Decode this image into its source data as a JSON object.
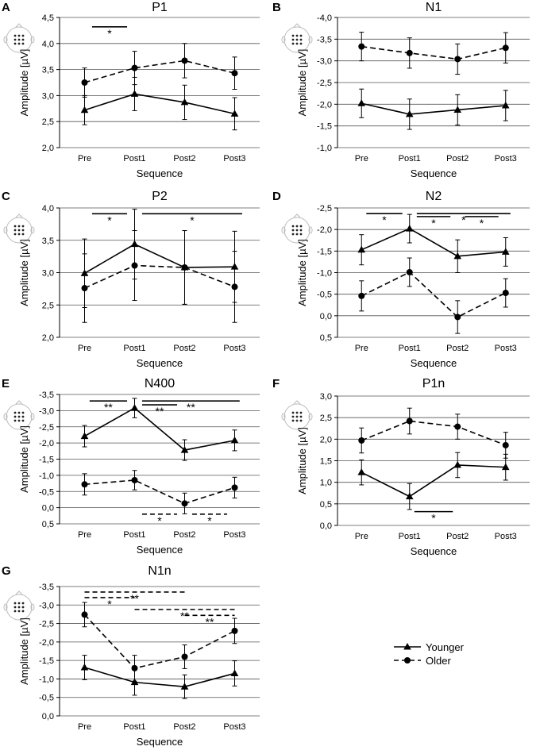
{
  "figure": {
    "legend": {
      "younger": "Younger",
      "older": "Older",
      "younger_marker": "triangle",
      "older_marker": "circle",
      "younger_line": "solid",
      "older_line": "dashed"
    },
    "colors": {
      "line": "#000000",
      "grid": "#555555",
      "head": "#bbbbbb"
    }
  },
  "chart_data": [
    {
      "id": "A",
      "type": "line",
      "title": "P1",
      "xlabel": "Sequence",
      "ylabel": "Amplitude [µV]",
      "categories": [
        "Pre",
        "Post1",
        "Post2",
        "Post3"
      ],
      "ylim": [
        2.0,
        4.5
      ],
      "inverted": false,
      "yticks": [
        2.0,
        2.5,
        3.0,
        3.5,
        4.0,
        4.5
      ],
      "ytick_labels": [
        "2,0",
        "2,5",
        "3,0",
        "3,5",
        "4,0",
        "4,5"
      ],
      "series": [
        {
          "name": "Younger",
          "values": [
            2.72,
            3.03,
            2.87,
            2.65
          ],
          "errors": [
            0.28,
            0.32,
            0.33,
            0.31
          ]
        },
        {
          "name": "Older",
          "values": [
            3.25,
            3.53,
            3.67,
            3.43
          ],
          "errors": [
            0.28,
            0.32,
            0.33,
            0.31
          ]
        }
      ],
      "significance": [
        {
          "from": 0.15,
          "to": 0.85,
          "y": 4.32,
          "dashed": false,
          "label": "*"
        }
      ]
    },
    {
      "id": "B",
      "type": "line",
      "title": "N1",
      "xlabel": "Sequence",
      "ylabel": "Amplitude [µV]",
      "categories": [
        "Pre",
        "Post1",
        "Post2",
        "Post3"
      ],
      "ylim": [
        -4.0,
        -1.0
      ],
      "inverted": true,
      "yticks": [
        -4.0,
        -3.5,
        -3.0,
        -2.5,
        -2.0,
        -1.5,
        -1.0
      ],
      "ytick_labels": [
        "-4,0",
        "-3,5",
        "-3,0",
        "-2,5",
        "-2,0",
        "-1,5",
        "-1,0"
      ],
      "series": [
        {
          "name": "Younger",
          "values": [
            -2.02,
            -1.77,
            -1.87,
            -1.97
          ],
          "errors": [
            0.33,
            0.35,
            0.35,
            0.35
          ]
        },
        {
          "name": "Older",
          "values": [
            -3.33,
            -3.18,
            -3.04,
            -3.3
          ],
          "errors": [
            0.33,
            0.35,
            0.35,
            0.35
          ]
        }
      ],
      "significance": []
    },
    {
      "id": "C",
      "type": "line",
      "title": "P2",
      "xlabel": "Sequence",
      "ylabel": "Amplitude [µV]",
      "categories": [
        "Pre",
        "Post1",
        "Post2",
        "Post3"
      ],
      "ylim": [
        2.0,
        4.0
      ],
      "inverted": false,
      "yticks": [
        2.0,
        2.5,
        3.0,
        3.5,
        4.0
      ],
      "ytick_labels": [
        "2,0",
        "2,5",
        "3,0",
        "3,5",
        "4,0"
      ],
      "series": [
        {
          "name": "Younger",
          "values": [
            2.99,
            3.44,
            3.08,
            3.09
          ],
          "errors": [
            0.53,
            0.54,
            0.57,
            0.55
          ]
        },
        {
          "name": "Older",
          "values": [
            2.76,
            3.11,
            3.08,
            2.78
          ],
          "errors": [
            0.53,
            0.54,
            0.57,
            0.55
          ]
        }
      ],
      "significance": [
        {
          "from": 0.15,
          "to": 0.85,
          "y": 3.91,
          "dashed": false,
          "label": "*"
        },
        {
          "from": 1.15,
          "to": 3.15,
          "y": 3.91,
          "dashed": false,
          "label": "*"
        }
      ]
    },
    {
      "id": "D",
      "type": "line",
      "title": "N2",
      "xlabel": "Sequence",
      "ylabel": "Amplitude [µV]",
      "categories": [
        "Pre",
        "Post1",
        "Post2",
        "Post3"
      ],
      "ylim": [
        -2.5,
        0.5
      ],
      "inverted": true,
      "yticks": [
        -2.5,
        -2.0,
        -1.5,
        -1.0,
        -0.5,
        0.0,
        0.5
      ],
      "ytick_labels": [
        "-2,5",
        "-2,0",
        "-1,5",
        "-1,0",
        "-0,5",
        "0,0",
        "0,5"
      ],
      "series": [
        {
          "name": "Younger",
          "values": [
            -1.53,
            -2.02,
            -1.38,
            -1.48
          ],
          "errors": [
            0.35,
            0.33,
            0.38,
            0.33
          ]
        },
        {
          "name": "Older",
          "values": [
            -0.46,
            -1.01,
            0.03,
            -0.53
          ],
          "errors": [
            0.35,
            0.33,
            0.38,
            0.33
          ]
        }
      ],
      "significance": [
        {
          "from": 0.1,
          "to": 0.85,
          "y": -2.37,
          "dashed": false,
          "label": "*"
        },
        {
          "from": 1.15,
          "to": 3.1,
          "y": -2.37,
          "dashed": false,
          "label": "*"
        },
        {
          "from": 1.15,
          "to": 1.85,
          "y": -2.3,
          "dashed": false,
          "label": "*"
        },
        {
          "from": 2.15,
          "to": 2.85,
          "y": -2.3,
          "dashed": false,
          "label": "*"
        }
      ]
    },
    {
      "id": "E",
      "type": "line",
      "title": "N400",
      "xlabel": "Sequence",
      "ylabel": "Amplitude [µV]",
      "categories": [
        "Pre",
        "Post1",
        "Post2",
        "Post3"
      ],
      "ylim": [
        -3.5,
        0.5
      ],
      "inverted": true,
      "yticks": [
        -3.5,
        -3.0,
        -2.5,
        -2.0,
        -1.5,
        -1.0,
        -0.5,
        0.0,
        0.5
      ],
      "ytick_labels": [
        "-3,5",
        "-3,0",
        "-2,5",
        "-2,0",
        "-1,5",
        "-1,0",
        "-0,5",
        "0,0",
        "0,5"
      ],
      "series": [
        {
          "name": "Younger",
          "values": [
            -2.21,
            -3.08,
            -1.78,
            -2.08
          ],
          "errors": [
            0.33,
            0.3,
            0.32,
            0.32
          ]
        },
        {
          "name": "Older",
          "values": [
            -0.72,
            -0.85,
            -0.13,
            -0.62
          ],
          "errors": [
            0.33,
            0.3,
            0.32,
            0.32
          ]
        }
      ],
      "significance": [
        {
          "from": 0.1,
          "to": 0.85,
          "y": -3.3,
          "dashed": false,
          "label": "**"
        },
        {
          "from": 1.15,
          "to": 3.1,
          "y": -3.3,
          "dashed": false,
          "label": "**"
        },
        {
          "from": 1.15,
          "to": 1.85,
          "y": -3.18,
          "dashed": false,
          "label": "**"
        },
        {
          "from": 1.15,
          "to": 1.85,
          "y": 0.2,
          "dashed": true,
          "label": "*"
        },
        {
          "from": 2.15,
          "to": 2.85,
          "y": 0.2,
          "dashed": true,
          "label": "*"
        }
      ]
    },
    {
      "id": "F",
      "type": "line",
      "title": "P1n",
      "xlabel": "Sequence",
      "ylabel": "Amplitude [µV]",
      "categories": [
        "Pre",
        "Post1",
        "Post2",
        "Post3"
      ],
      "ylim": [
        0.0,
        3.0
      ],
      "inverted": false,
      "yticks": [
        0.0,
        0.5,
        1.0,
        1.5,
        2.0,
        2.5,
        3.0
      ],
      "ytick_labels": [
        "0,0",
        "0,5",
        "1,0",
        "1,5",
        "2,0",
        "2,5",
        "3,0"
      ],
      "series": [
        {
          "name": "Younger",
          "values": [
            1.23,
            0.67,
            1.4,
            1.35
          ],
          "errors": [
            0.29,
            0.3,
            0.29,
            0.3
          ]
        },
        {
          "name": "Older",
          "values": [
            1.97,
            2.42,
            2.29,
            1.86
          ],
          "errors": [
            0.29,
            0.3,
            0.29,
            0.3
          ]
        }
      ],
      "significance": [
        {
          "from": 1.1,
          "to": 1.9,
          "y": 0.32,
          "dashed": false,
          "label": "*"
        }
      ]
    },
    {
      "id": "G",
      "type": "line",
      "title": "N1n",
      "xlabel": "Sequence",
      "ylabel": "Amplitude [µV]",
      "categories": [
        "Pre",
        "Post1",
        "Post2",
        "Post3"
      ],
      "ylim": [
        -3.5,
        0.0
      ],
      "inverted": true,
      "yticks": [
        -3.5,
        -3.0,
        -2.5,
        -2.0,
        -1.5,
        -1.0,
        -0.5,
        0.0
      ],
      "ytick_labels": [
        "-3,5",
        "-3,0",
        "-2,5",
        "-2,0",
        "-1,5",
        "-1,0",
        "-0,5",
        "0,0"
      ],
      "series": [
        {
          "name": "Younger",
          "values": [
            -1.31,
            -0.91,
            -0.79,
            -1.15
          ],
          "errors": [
            0.33,
            0.35,
            0.32,
            0.34
          ]
        },
        {
          "name": "Older",
          "values": [
            -2.74,
            -1.29,
            -1.6,
            -2.3
          ],
          "errors": [
            0.33,
            0.35,
            0.32,
            0.34
          ]
        }
      ],
      "significance": [
        {
          "from": 0.0,
          "to": 2.0,
          "y": -3.35,
          "dashed": true,
          "label": "**"
        },
        {
          "from": 0.0,
          "to": 1.0,
          "y": -3.2,
          "dashed": true,
          "label": "*"
        },
        {
          "from": 1.0,
          "to": 3.0,
          "y": -2.88,
          "dashed": true,
          "label": "**"
        },
        {
          "from": 2.0,
          "to": 3.0,
          "y": -2.72,
          "dashed": true,
          "label": "**"
        }
      ]
    }
  ]
}
